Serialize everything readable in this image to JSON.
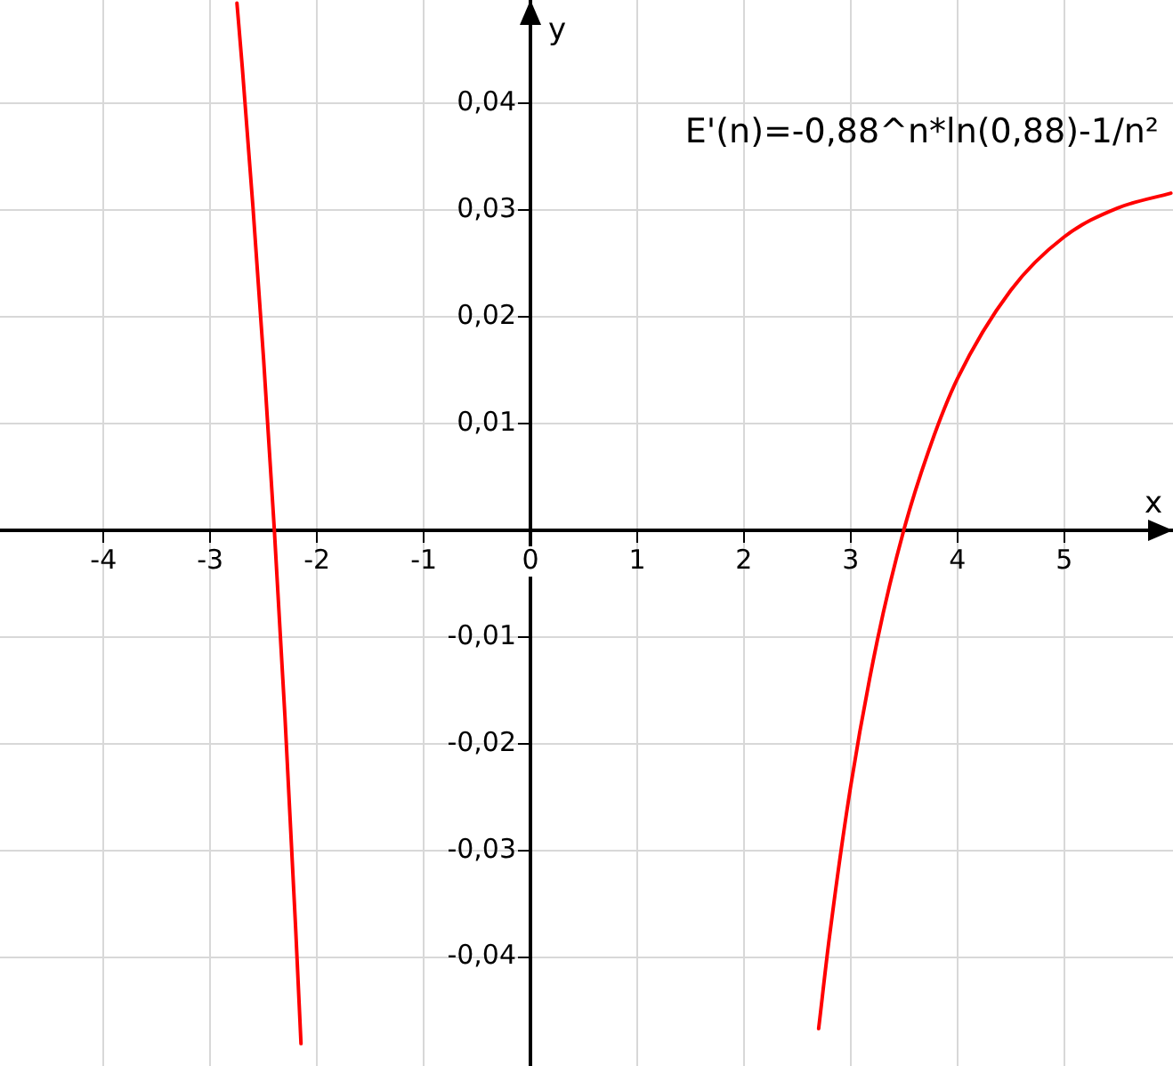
{
  "chart_data": {
    "type": "line",
    "xlabel": "x",
    "ylabel": "y",
    "annotations": [
      "E'(n)=-0,88^n*ln(0,88)-1/n²"
    ],
    "series": [
      {
        "color": "#ff0000",
        "x": [
          -2.75,
          -2.7,
          -2.6,
          -2.5,
          -2.4,
          -2.3,
          -2.2,
          -2.15
        ],
        "values": [
          0.0494,
          0.0434,
          0.0303,
          0.016,
          0.0001,
          -0.0175,
          -0.0373,
          -0.0481
        ]
      },
      {
        "color": "#ff0000",
        "x": [
          2.7,
          2.8,
          3,
          3.25,
          3.5,
          3.75,
          4,
          4.5,
          5,
          5.5,
          6
        ],
        "values": [
          -0.0467,
          -0.0382,
          -0.024,
          -0.0103,
          0.0001,
          0.008,
          0.0142,
          0.0225,
          0.0275,
          0.0302,
          0.0316
        ]
      }
    ],
    "xlim": [
      -4.97,
      6.02
    ],
    "ylim": [
      -0.0502,
      0.0497
    ],
    "xticks": [
      -4,
      -3,
      -2,
      -1,
      0,
      1,
      2,
      3,
      4,
      5
    ],
    "yticks": [
      {
        "value": -0.04,
        "label": "-0,04"
      },
      {
        "value": -0.03,
        "label": "-0,03"
      },
      {
        "value": -0.02,
        "label": "-0,02"
      },
      {
        "value": -0.01,
        "label": "-0,01"
      },
      {
        "value": 0,
        "label": null
      },
      {
        "value": 0.01,
        "label": "0,01"
      },
      {
        "value": 0.02,
        "label": "0,02"
      },
      {
        "value": 0.03,
        "label": "0,03"
      },
      {
        "value": 0.04,
        "label": "0,04"
      }
    ],
    "grid": true,
    "line_style": "solid",
    "marker": "none",
    "legend": false
  }
}
